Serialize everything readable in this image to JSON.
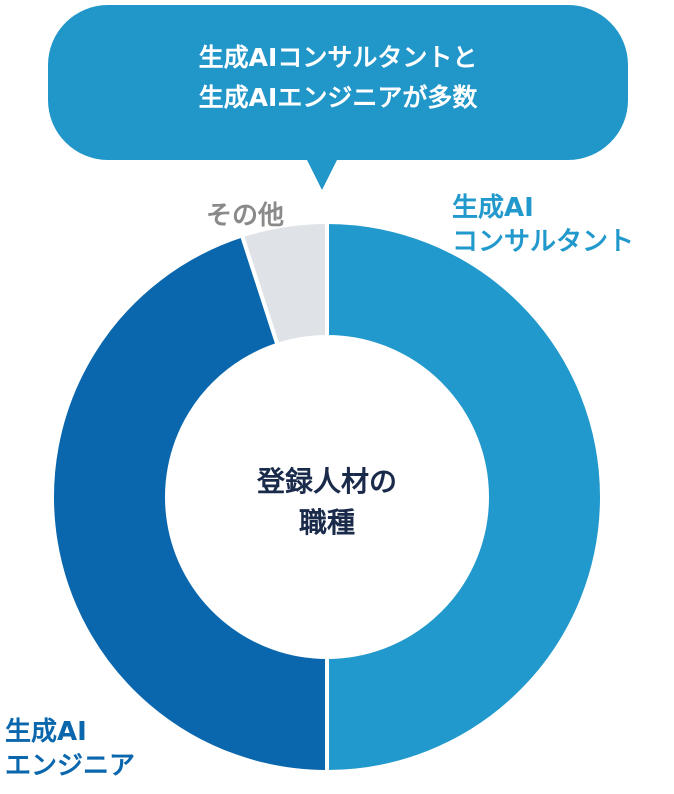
{
  "bubble_text": "生成AIコンサルタントと\n生成AIエンジニアが多数",
  "chart_data": {
    "type": "donut",
    "center_text": "登録人材の\n職種",
    "categories": [
      "生成AI\nコンサルタント",
      "生成AI\nエンジニア",
      "その他"
    ],
    "values": [
      50,
      45,
      5
    ],
    "colors": [
      "#2299cc",
      "#0a67ad",
      "#dfe3e7"
    ]
  }
}
